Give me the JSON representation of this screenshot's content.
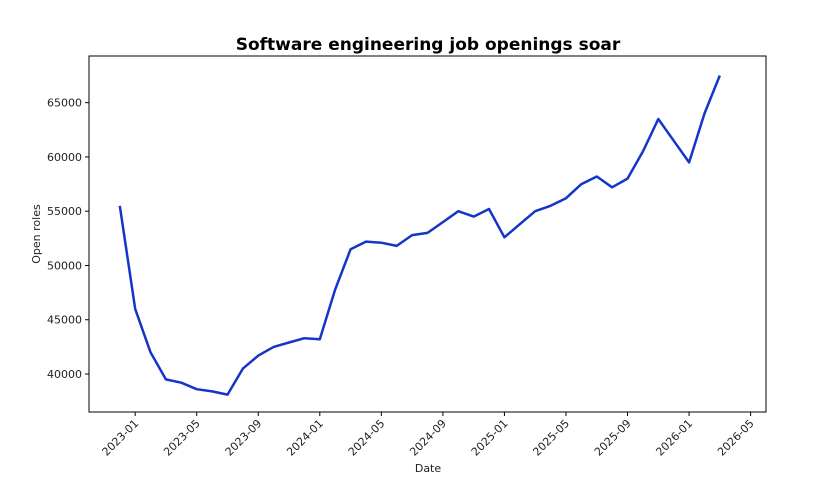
{
  "chart_data": {
    "type": "line",
    "title": "Software engineering job openings soar",
    "x_label": "Date",
    "y_label": "Open roles",
    "x": [
      "2022-12",
      "2023-01",
      "2023-02",
      "2023-03",
      "2023-04",
      "2023-05",
      "2023-06",
      "2023-07",
      "2023-08",
      "2023-09",
      "2023-10",
      "2023-11",
      "2023-12",
      "2024-01",
      "2024-02",
      "2024-03",
      "2024-04",
      "2024-05",
      "2024-06",
      "2024-07",
      "2024-08",
      "2024-09",
      "2024-10",
      "2024-11",
      "2024-12",
      "2025-01",
      "2025-02",
      "2025-03",
      "2025-04",
      "2025-05",
      "2025-06",
      "2025-07",
      "2025-08",
      "2025-09",
      "2025-10",
      "2025-11",
      "2025-12",
      "2026-01",
      "2026-02",
      "2026-03"
    ],
    "series": [
      {
        "name": "Open roles",
        "color": "#1535c9",
        "values": [
          55500,
          46000,
          42000,
          39500,
          39200,
          38600,
          38400,
          38100,
          40500,
          41700,
          42500,
          42900,
          43300,
          43200,
          47800,
          51500,
          52200,
          52100,
          51800,
          52800,
          53000,
          54000,
          55000,
          54500,
          55200,
          52600,
          53800,
          55000,
          55500,
          56200,
          57500,
          58200,
          57200,
          58000,
          60500,
          63500,
          61500,
          59500,
          64000,
          67500
        ]
      }
    ],
    "xlim": [
      "2022-10",
      "2026-06"
    ],
    "xticks": [
      "2023-01",
      "2023-05",
      "2023-09",
      "2024-01",
      "2024-05",
      "2024-09",
      "2025-01",
      "2025-05",
      "2025-09",
      "2026-01",
      "2026-05"
    ],
    "ylim": [
      36500,
      69300
    ],
    "yticks": [
      40000,
      45000,
      50000,
      55000,
      60000,
      65000
    ],
    "grid": false
  }
}
